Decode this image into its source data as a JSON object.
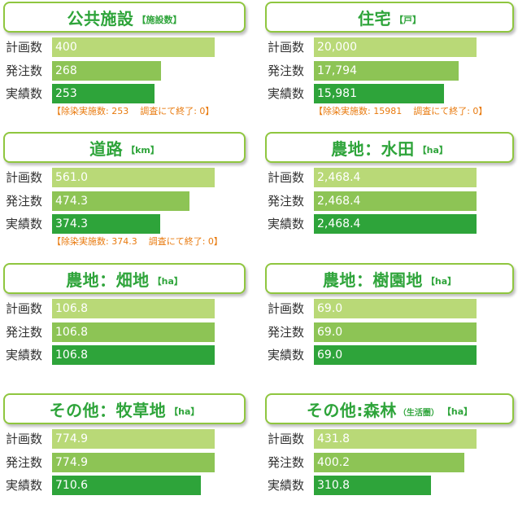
{
  "colors": {
    "plan": "#b9d977",
    "order": "#8dc455",
    "actual": "#2ea43a",
    "title": "#2ea43a",
    "note": "#e8790c"
  },
  "row_labels": [
    "計画数",
    "発注数",
    "実績数"
  ],
  "chart_data": [
    {
      "type": "bar",
      "title": "公共施設",
      "unit": "【施設数】",
      "categories": [
        "計画数",
        "発注数",
        "実績数"
      ],
      "values": [
        400,
        268,
        253
      ],
      "value_labels": [
        "400",
        "268",
        "253"
      ],
      "note": "【除染実施数: 253",
      "note_sub": "調査にて終了: 0】"
    },
    {
      "type": "bar",
      "title": "住宅",
      "unit": "【戸】",
      "categories": [
        "計画数",
        "発注数",
        "実績数"
      ],
      "values": [
        20000,
        17794,
        15981
      ],
      "value_labels": [
        "20,000",
        "17,794",
        "15,981"
      ],
      "note": "【除染実施数: 15981",
      "note_sub": "調査にて終了: 0】"
    },
    {
      "type": "bar",
      "title": "道路",
      "unit": "【km】",
      "categories": [
        "計画数",
        "発注数",
        "実績数"
      ],
      "values": [
        561.0,
        474.3,
        374.3
      ],
      "value_labels": [
        "561.0",
        "474.3",
        "374.3"
      ],
      "note": "【除染実施数: 374.3",
      "note_sub": "調査にて終了: 0】"
    },
    {
      "type": "bar",
      "title": "農地：水田",
      "unit": "【ha】",
      "categories": [
        "計画数",
        "発注数",
        "実績数"
      ],
      "values": [
        2468.4,
        2468.4,
        2468.4
      ],
      "value_labels": [
        "2,468.4",
        "2,468.4",
        "2,468.4"
      ]
    },
    {
      "type": "bar",
      "title": "農地：畑地",
      "unit": "【ha】",
      "categories": [
        "計画数",
        "発注数",
        "実績数"
      ],
      "values": [
        106.8,
        106.8,
        106.8
      ],
      "value_labels": [
        "106.8",
        "106.8",
        "106.8"
      ]
    },
    {
      "type": "bar",
      "title": "農地：樹園地",
      "unit": "【ha】",
      "categories": [
        "計画数",
        "発注数",
        "実績数"
      ],
      "values": [
        69.0,
        69.0,
        69.0
      ],
      "value_labels": [
        "69.0",
        "69.0",
        "69.0"
      ]
    },
    {
      "type": "bar",
      "title": "その他：牧草地",
      "unit": "【ha】",
      "categories": [
        "計画数",
        "発注数",
        "実績数"
      ],
      "values": [
        774.9,
        774.9,
        710.6
      ],
      "value_labels": [
        "774.9",
        "774.9",
        "710.6"
      ]
    },
    {
      "type": "bar",
      "title": "その他:森林",
      "subtitle": "（生活圏）",
      "unit": "【ha】",
      "categories": [
        "計画数",
        "発注数",
        "実績数"
      ],
      "values": [
        431.8,
        400.2,
        310.8
      ],
      "value_labels": [
        "431.8",
        "400.2",
        "310.8"
      ]
    }
  ]
}
